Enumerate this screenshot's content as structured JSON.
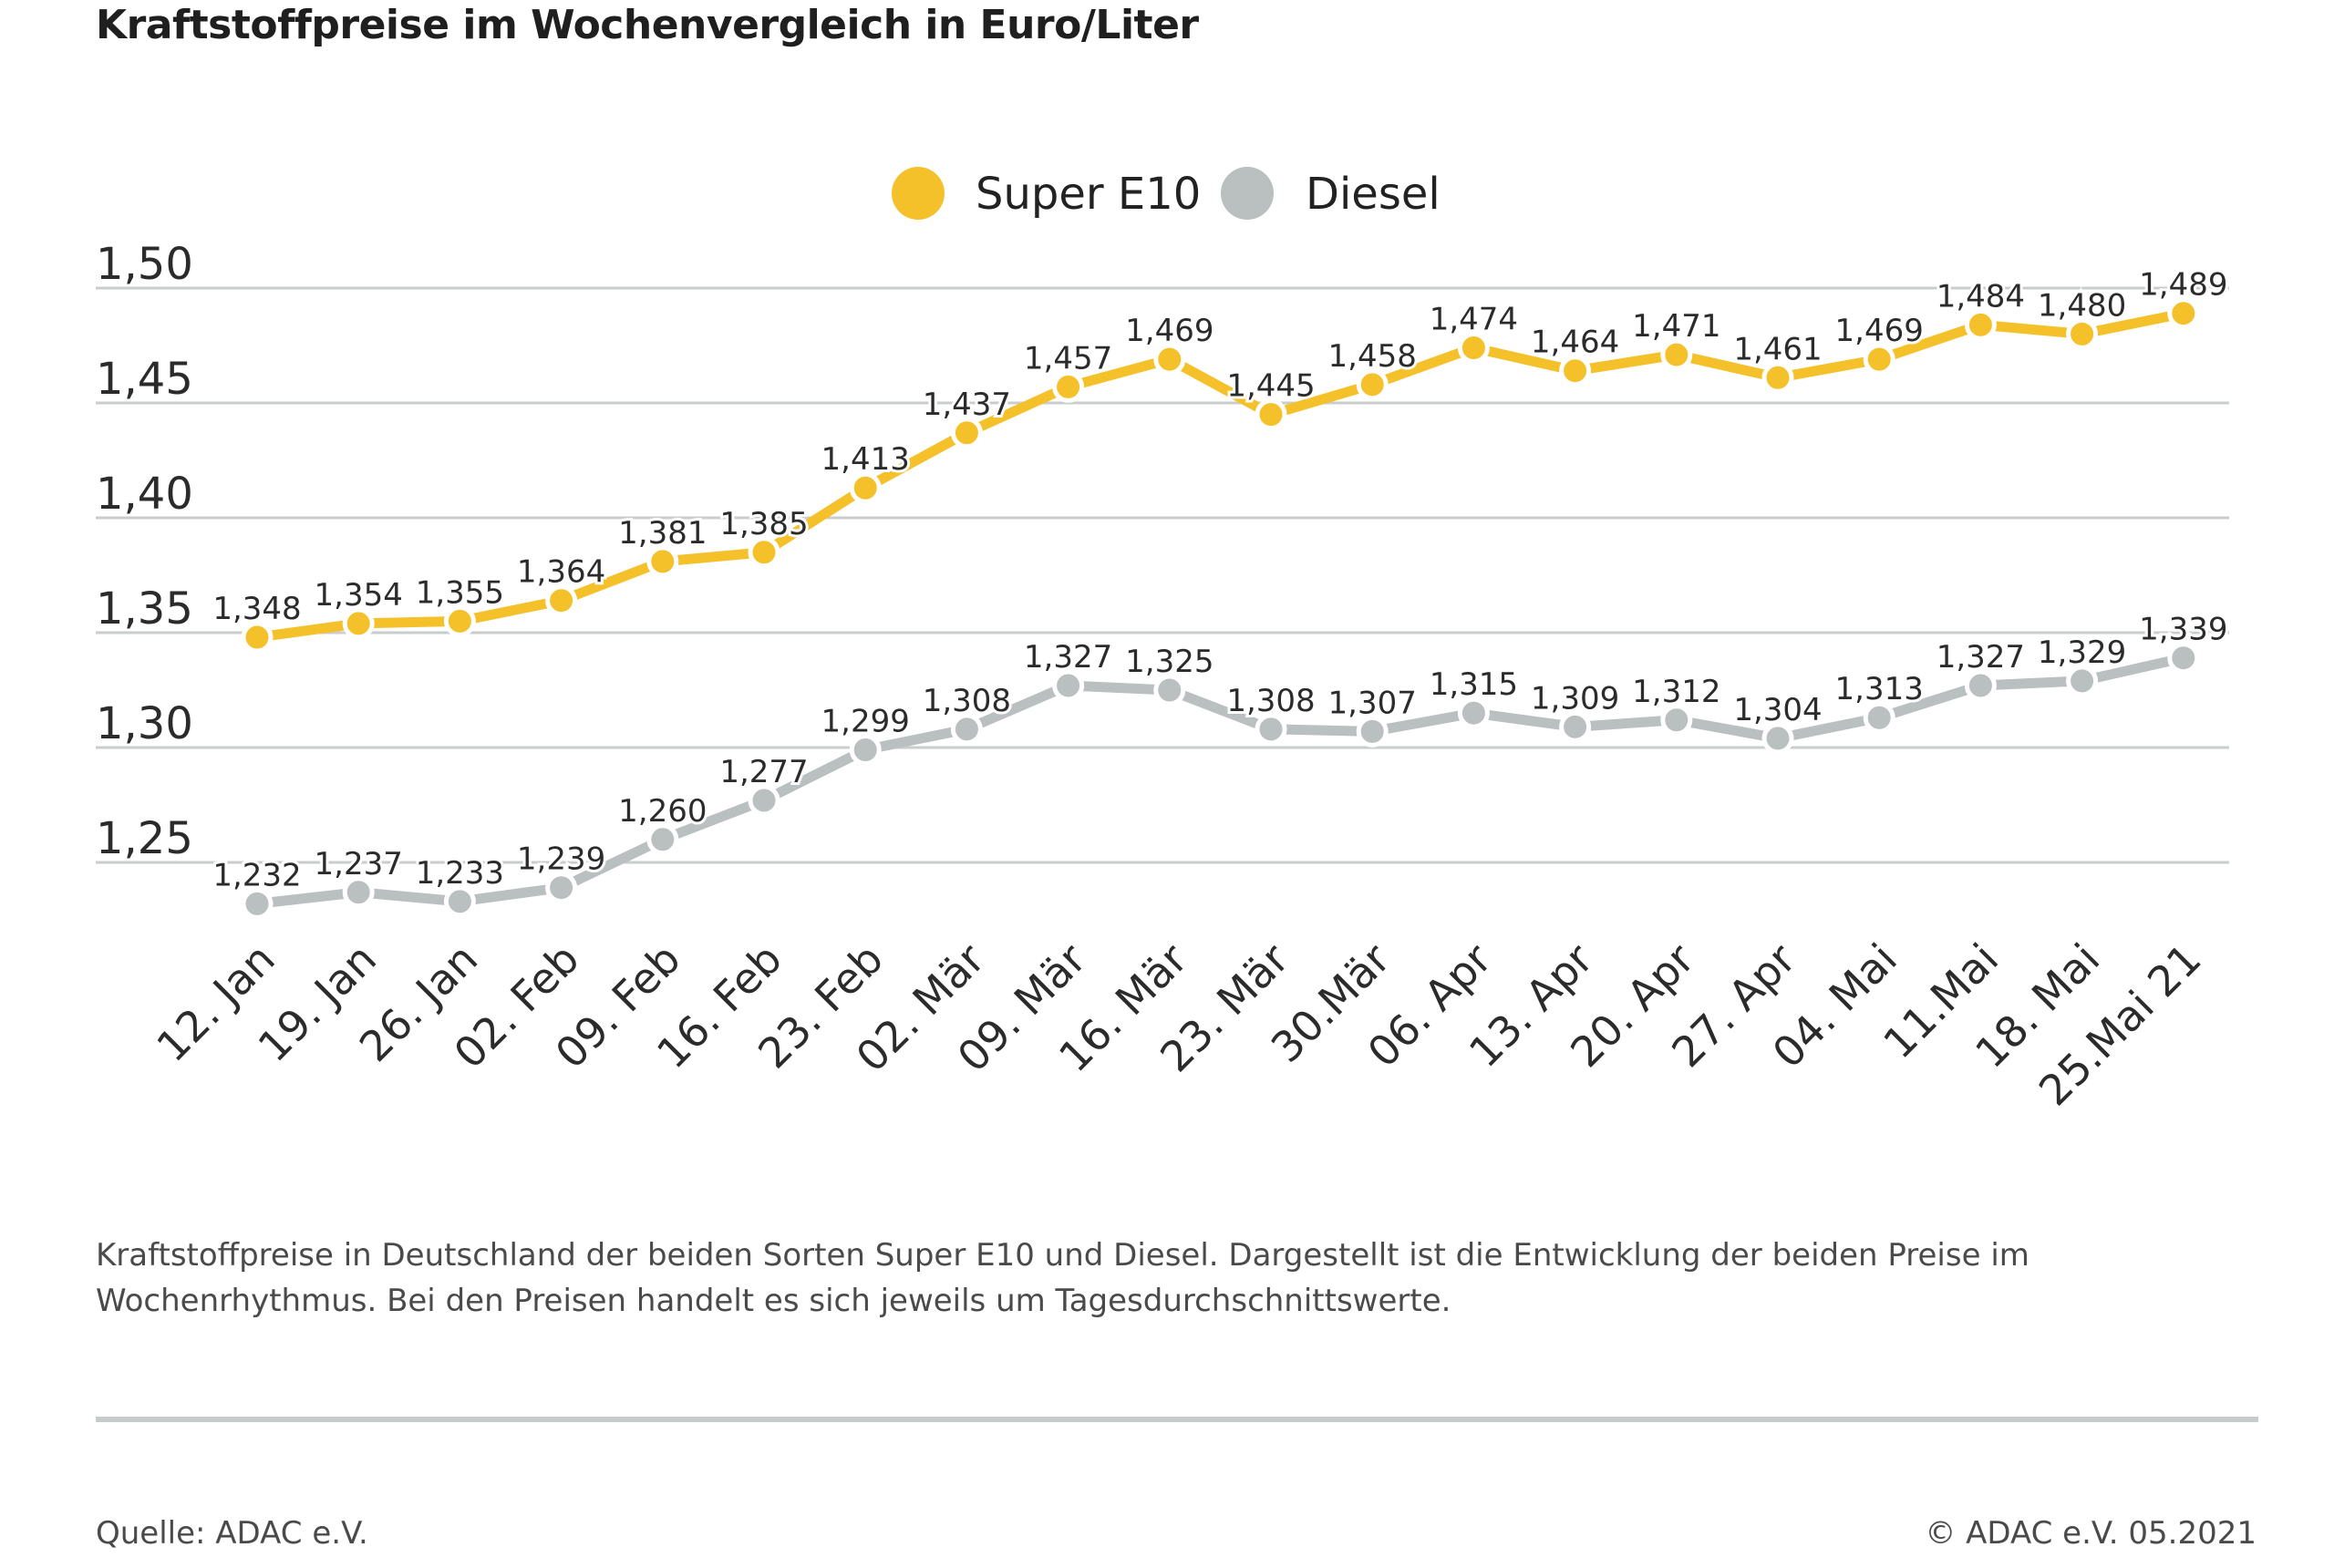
{
  "title": "Kraftstoffpreise im Wochenvergleich in Euro/Liter",
  "caption": "Kraftstoffpreise in Deutschland der beiden Sorten Super E10 und Diesel. Dargestellt ist die Entwicklung der beiden Preise im Wochenrhythmus. Bei den Preisen handelt es sich jeweils um Tagesdurchschnittswerte.",
  "source": "Quelle: ADAC e.V.",
  "copyright": "© ADAC e.V. 05.2021",
  "colors": {
    "super_e10": "#f5c12a",
    "diesel": "#b9c0bf",
    "grid": "#c9cecd",
    "text": "#2b2b2b"
  },
  "chart_data": {
    "type": "line",
    "title": "Kraftstoffpreise im Wochenvergleich in Euro/Liter",
    "xlabel": "",
    "ylabel": "",
    "ylim": [
      1.25,
      1.5
    ],
    "yticks": [
      1.5,
      1.45,
      1.4,
      1.35,
      1.3,
      1.25
    ],
    "ytick_labels": [
      "1,50",
      "1,45",
      "1,40",
      "1,35",
      "1,30",
      "1,25"
    ],
    "grid": true,
    "legend_position": "top-center",
    "categories": [
      "12. Jan",
      "19. Jan",
      "26. Jan",
      "02. Feb",
      "09. Feb",
      "16. Feb",
      "23. Feb",
      "02. Mär",
      "09. Mär",
      "16. Mär",
      "23. Mär",
      "30.Mär",
      "06. Apr",
      "13. Apr",
      "20. Apr",
      "27. Apr",
      "04. Mai",
      "11.Mai",
      "18. Mai",
      "25.Mai 21"
    ],
    "series": [
      {
        "name": "Super E10",
        "color": "#f5c12a",
        "values": [
          1.348,
          1.354,
          1.355,
          1.364,
          1.381,
          1.385,
          1.413,
          1.437,
          1.457,
          1.469,
          1.445,
          1.458,
          1.474,
          1.464,
          1.471,
          1.461,
          1.469,
          1.484,
          1.48,
          1.489
        ],
        "labels": [
          "1,348",
          "1,354",
          "1,355",
          "1,364",
          "1,381",
          "1,385",
          "1,413",
          "1,437",
          "1,457",
          "1,469",
          "1,445",
          "1,458",
          "1,474",
          "1,464",
          "1,471",
          "1,461",
          "1,469",
          "1,484",
          "1,480",
          "1,489"
        ]
      },
      {
        "name": "Diesel",
        "color": "#b9c0bf",
        "values": [
          1.232,
          1.237,
          1.233,
          1.239,
          1.26,
          1.277,
          1.299,
          1.308,
          1.327,
          1.325,
          1.308,
          1.307,
          1.315,
          1.309,
          1.312,
          1.304,
          1.313,
          1.327,
          1.329,
          1.339
        ],
        "labels": [
          "1,232",
          "1,237",
          "1,233",
          "1,239",
          "1,260",
          "1,277",
          "1,299",
          "1,308",
          "1,327",
          "1,325",
          "1,308",
          "1,307",
          "1,315",
          "1,309",
          "1,312",
          "1,304",
          "1,313",
          "1,327",
          "1,329",
          "1,339"
        ]
      }
    ]
  }
}
